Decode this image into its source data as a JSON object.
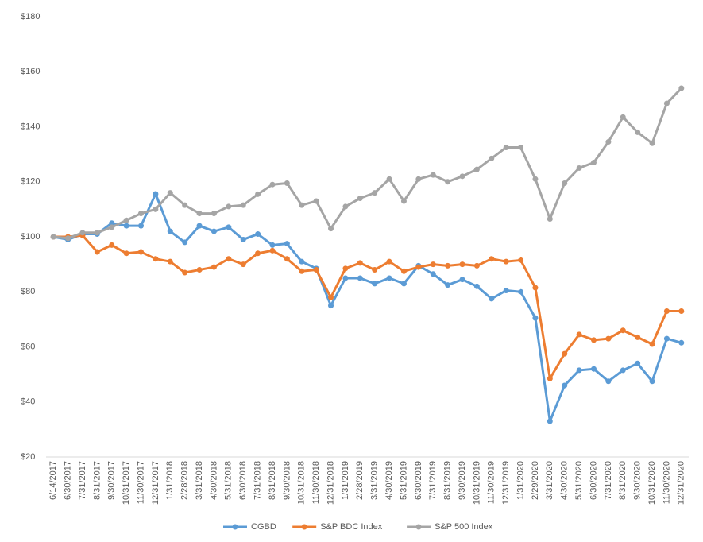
{
  "chart_data": {
    "type": "line",
    "categories": [
      "6/14/2017",
      "6/30/2017",
      "7/31/2017",
      "8/31/2017",
      "9/30/2017",
      "10/31/2017",
      "11/30/2017",
      "12/31/2017",
      "1/31/2018",
      "2/28/2018",
      "3/31/2018",
      "4/30/2018",
      "5/31/2018",
      "6/30/2018",
      "7/31/2018",
      "8/31/2018",
      "9/30/2018",
      "10/31/2018",
      "11/30/2018",
      "12/31/2018",
      "1/31/2019",
      "2/28/2019",
      "3/31/2019",
      "4/30/2019",
      "5/31/2019",
      "6/30/2019",
      "7/31/2019",
      "8/31/2019",
      "9/30/2019",
      "10/31/2019",
      "11/30/2019",
      "12/31/2019",
      "1/31/2020",
      "2/29/2020",
      "3/31/2020",
      "4/30/2020",
      "5/31/2020",
      "6/30/2020",
      "7/31/2020",
      "8/31/2020",
      "9/30/2020",
      "10/31/2020",
      "11/30/2020",
      "12/31/2020"
    ],
    "series": [
      {
        "name": "CGBD",
        "color": "#5b9bd5",
        "values": [
          100,
          99,
          101,
          101,
          105,
          104,
          104,
          115.6,
          102,
          98,
          104,
          102,
          103.5,
          99,
          101,
          97,
          97.5,
          91,
          88.5,
          75,
          85,
          85,
          83,
          85,
          83,
          89.5,
          86.5,
          82.5,
          84.5,
          82,
          77.5,
          80.5,
          80,
          70.5,
          33,
          46,
          51.5,
          52,
          47.5,
          51.5,
          54,
          47.5,
          63,
          61.5
        ]
      },
      {
        "name": "S&P BDC Index",
        "color": "#ed7d31",
        "values": [
          100,
          100,
          100.5,
          94.5,
          97,
          94,
          94.5,
          92,
          91,
          87,
          88,
          89,
          92,
          90,
          94,
          95,
          92,
          87.5,
          88,
          78,
          88.5,
          90.5,
          88,
          91,
          87.5,
          89,
          90,
          89.5,
          90,
          89.5,
          92,
          91,
          91.5,
          81.5,
          48.5,
          57.5,
          64.5,
          62.5,
          63,
          66,
          63.5,
          61,
          73,
          73
        ]
      },
      {
        "name": "S&P 500 Index",
        "color": "#a5a5a5",
        "values": [
          100,
          99.5,
          101.5,
          101.5,
          103.5,
          106,
          108.5,
          110,
          116,
          111.5,
          108.5,
          108.5,
          111,
          111.5,
          115.5,
          119,
          119.5,
          111.5,
          113,
          103,
          111,
          114,
          116,
          121,
          113,
          121,
          122.5,
          120,
          122,
          124.5,
          128.5,
          132.5,
          132.5,
          121,
          106.5,
          119.5,
          125,
          127,
          134.5,
          143.5,
          138,
          134,
          148.5,
          154
        ]
      }
    ],
    "ylim": [
      20,
      180
    ],
    "yticks": [
      {
        "value": 20,
        "label": "$20"
      },
      {
        "value": 40,
        "label": "$40"
      },
      {
        "value": 60,
        "label": "$60"
      },
      {
        "value": 80,
        "label": "$80"
      },
      {
        "value": 100,
        "label": "$100"
      },
      {
        "value": 120,
        "label": "$120"
      },
      {
        "value": 140,
        "label": "$140"
      },
      {
        "value": 160,
        "label": "$160"
      },
      {
        "value": 180,
        "label": "$180"
      }
    ]
  }
}
